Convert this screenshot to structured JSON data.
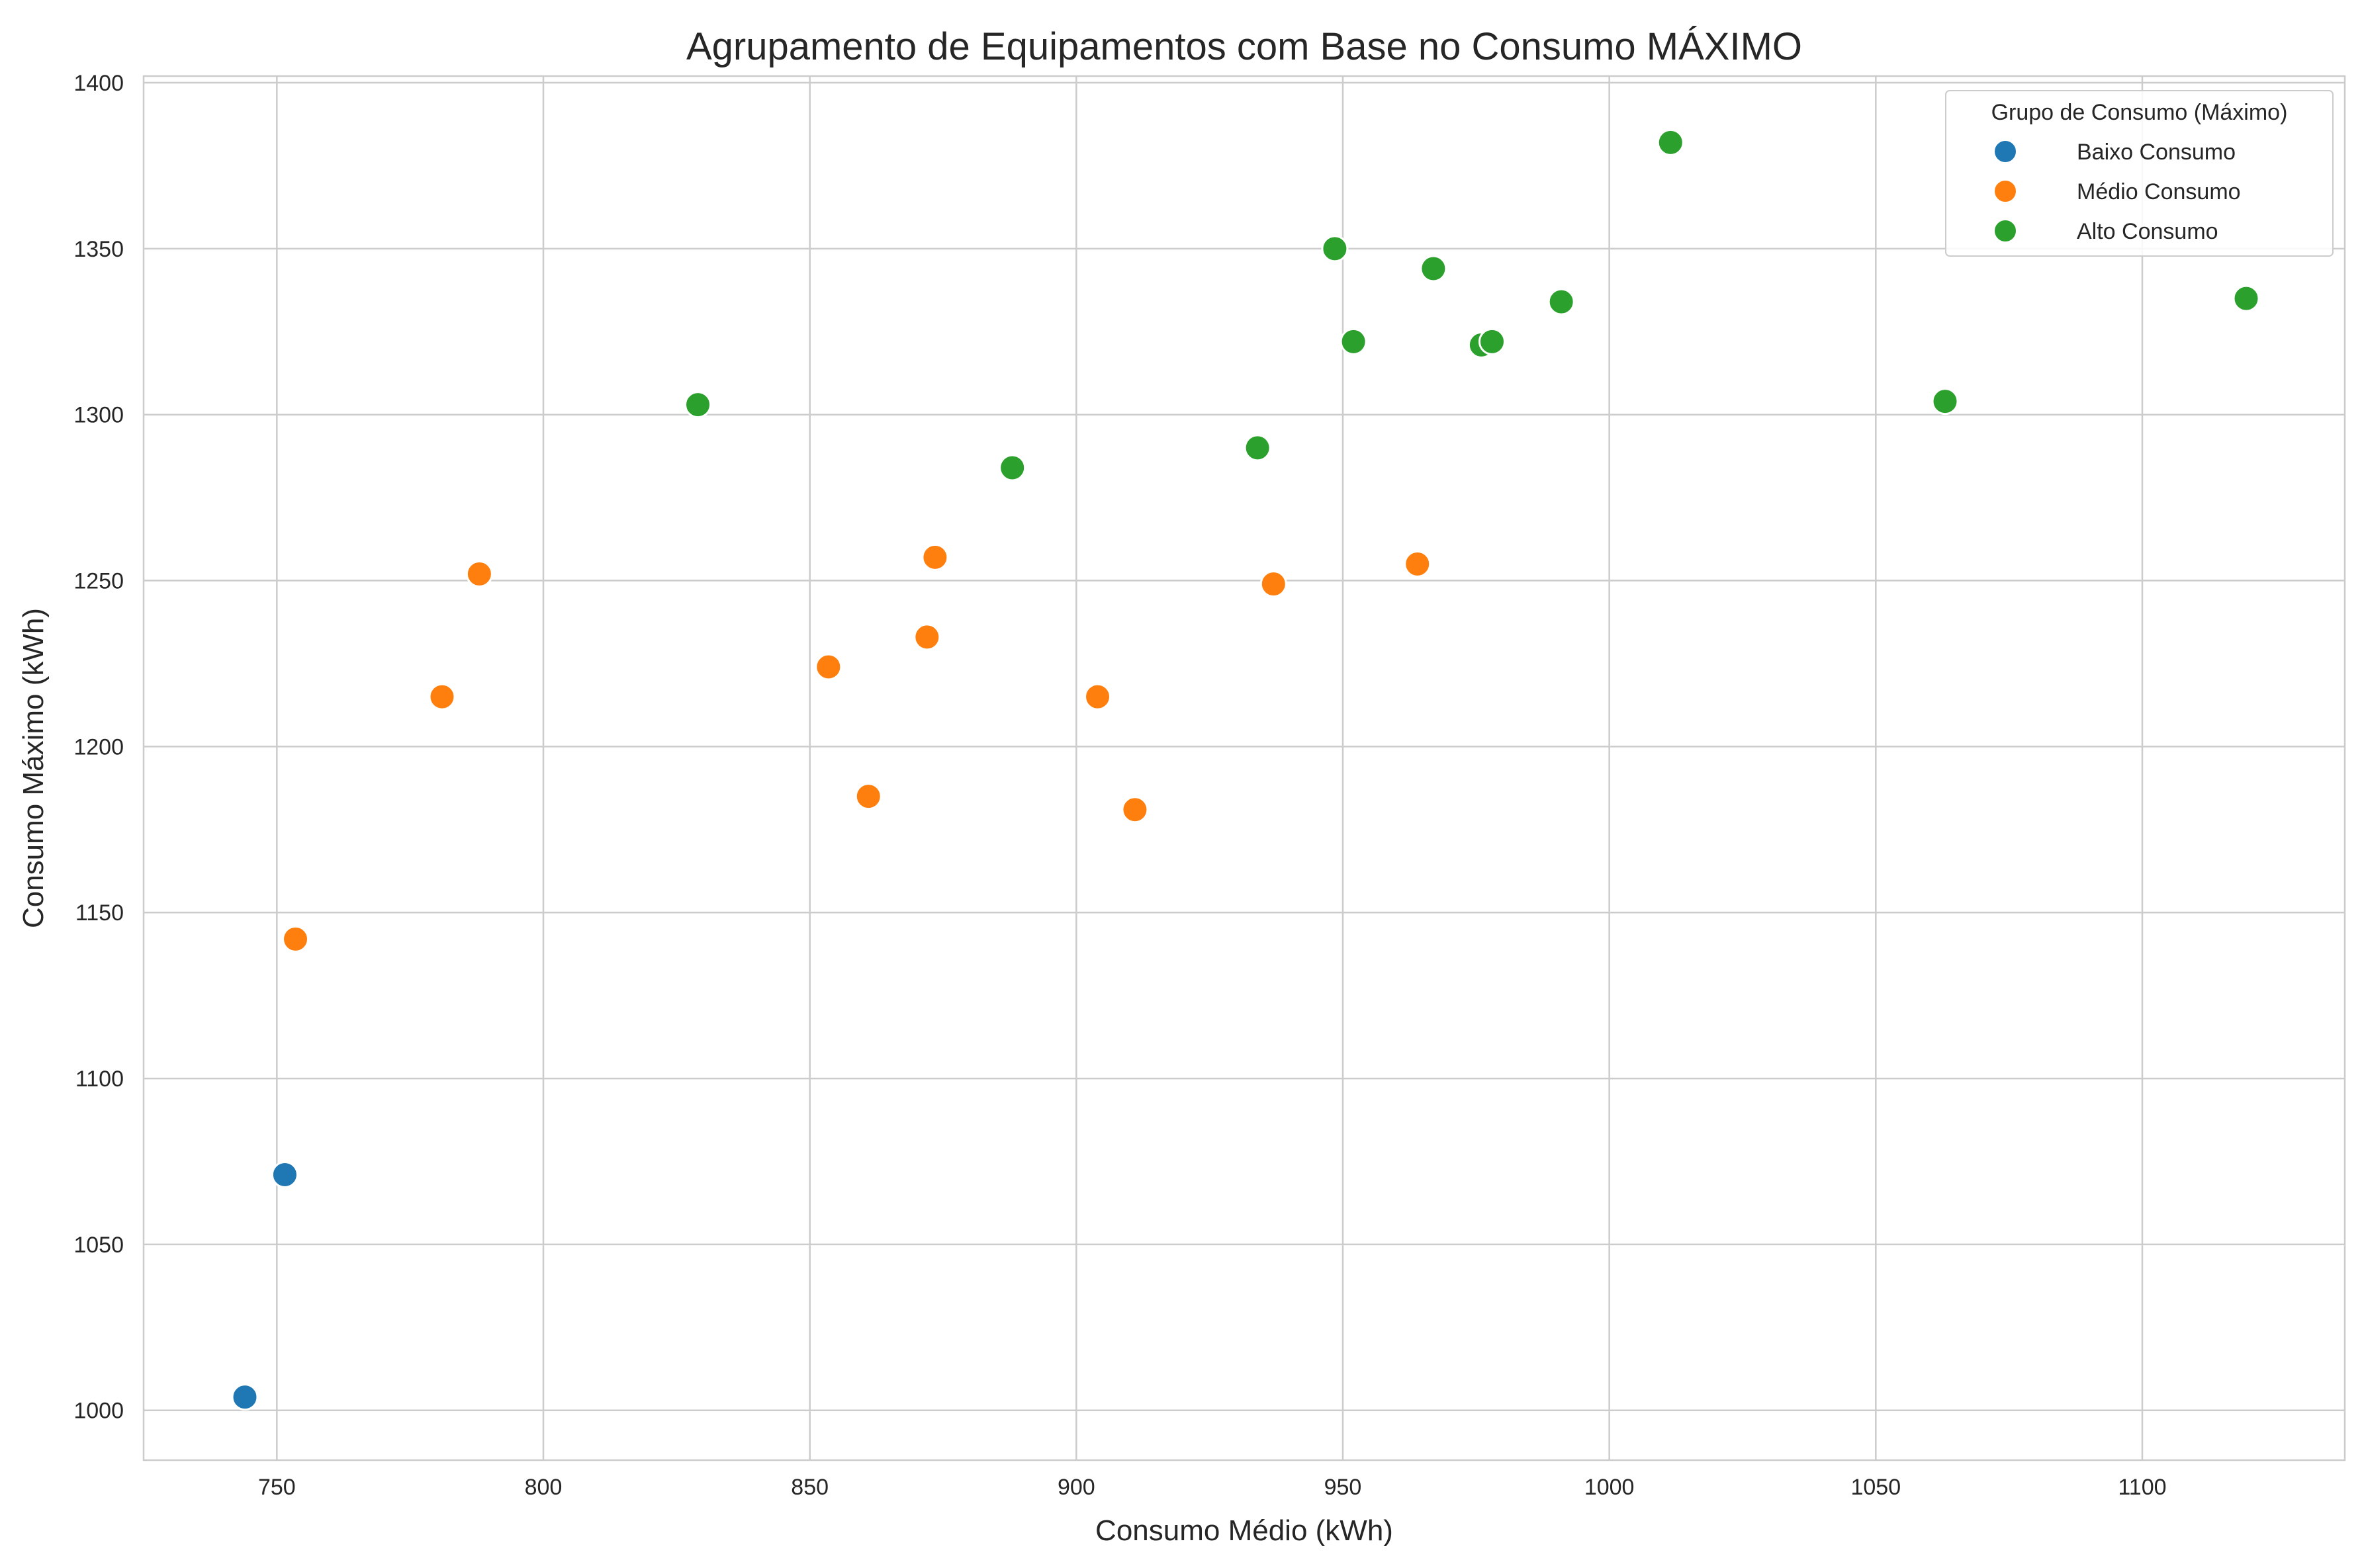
{
  "chart_data": {
    "type": "scatter",
    "title": "Agrupamento de Equipamentos com Base no Consumo MÁXIMO",
    "xlabel": "Consumo Médio (kWh)",
    "ylabel": "Consumo Máximo (kWh)",
    "xlim": [
      725,
      1138
    ],
    "ylim": [
      985,
      1402
    ],
    "xticks": [
      750,
      800,
      850,
      900,
      950,
      1000,
      1050,
      1100
    ],
    "yticks": [
      1000,
      1050,
      1100,
      1150,
      1200,
      1250,
      1300,
      1350,
      1400
    ],
    "grid": true,
    "legend": {
      "title": "Grupo de Consumo (Máximo)",
      "placement": "top-right"
    },
    "series": [
      {
        "name": "Baixo Consumo",
        "color": "#1f77b4",
        "points": [
          [
            744,
            1004
          ],
          [
            751.5,
            1071
          ]
        ]
      },
      {
        "name": "Médio Consumo",
        "color": "#ff7f0e",
        "points": [
          [
            753.5,
            1142
          ],
          [
            781,
            1215
          ],
          [
            788,
            1252
          ],
          [
            853.5,
            1224
          ],
          [
            861,
            1185
          ],
          [
            872,
            1233
          ],
          [
            873.5,
            1257
          ],
          [
            904,
            1215
          ],
          [
            911,
            1181
          ],
          [
            937,
            1249
          ],
          [
            964,
            1255
          ]
        ]
      },
      {
        "name": "Alto Consumo",
        "color": "#2ca02c",
        "points": [
          [
            829,
            1303
          ],
          [
            888,
            1284
          ],
          [
            934,
            1290
          ],
          [
            948.5,
            1350
          ],
          [
            952,
            1322
          ],
          [
            967,
            1344
          ],
          [
            976,
            1321
          ],
          [
            978,
            1322
          ],
          [
            991,
            1334
          ],
          [
            1011.5,
            1382
          ],
          [
            1063,
            1304
          ],
          [
            1119.5,
            1335
          ]
        ]
      }
    ]
  }
}
